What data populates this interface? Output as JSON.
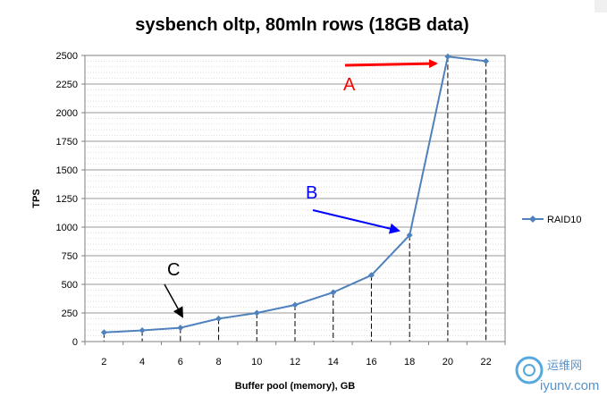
{
  "chart_data": {
    "type": "line",
    "title": "sysbench oltp, 80mln rows (18GB data)",
    "xlabel": "Buffer pool (memory), GB",
    "ylabel": "TPS",
    "x": [
      2,
      4,
      6,
      8,
      10,
      12,
      14,
      16,
      18,
      20,
      22
    ],
    "series": [
      {
        "name": "RAID10",
        "values": [
          80,
          98,
          120,
          200,
          250,
          320,
          430,
          580,
          930,
          2490,
          2450
        ]
      }
    ],
    "ylim": [
      0,
      2500
    ],
    "yticks": [
      0,
      250,
      500,
      750,
      1000,
      1250,
      1500,
      1750,
      2000,
      2250,
      2500
    ],
    "xticks": [
      "2",
      "4",
      "6",
      "8",
      "10",
      "12",
      "14",
      "16",
      "18",
      "20",
      "22"
    ],
    "grid": "horizontal dotted minor lines",
    "legend": "right",
    "colors": {
      "series": "#4f81bd"
    },
    "annotations": [
      {
        "label": "A",
        "color": "#ff0000",
        "points_to_x": 20
      },
      {
        "label": "B",
        "color": "#0000ff",
        "points_to_x": 18
      },
      {
        "label": "C",
        "color": "#000000",
        "points_to_x": 6
      }
    ]
  },
  "watermark": {
    "text_cn": "运维网",
    "text_url": "iyunv.com"
  }
}
